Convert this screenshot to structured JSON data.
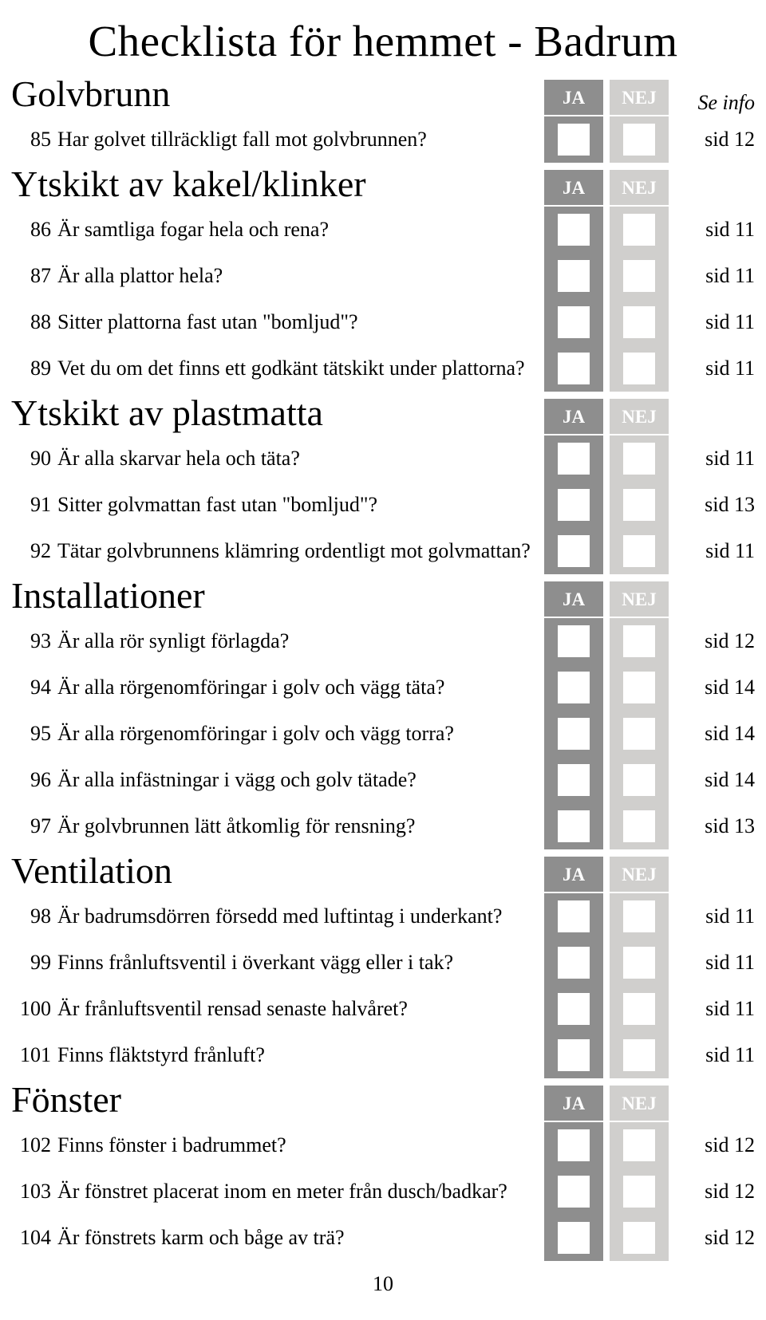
{
  "title": "Checklista för hemmet - Badrum",
  "info_header": "Se info",
  "ja_label": "JA",
  "nej_label": "NEJ",
  "page_number": "10",
  "sections": [
    {
      "heading": "Golvbrunn",
      "items": [
        {
          "num": "85",
          "q": "Har golvet tillräckligt fall mot golvbrunnen?",
          "info": "sid 12"
        }
      ]
    },
    {
      "heading": "Ytskikt av kakel/klinker",
      "items": [
        {
          "num": "86",
          "q": "Är samtliga fogar hela och rena?",
          "info": "sid 11"
        },
        {
          "num": "87",
          "q": "Är alla plattor hela?",
          "info": "sid 11"
        },
        {
          "num": "88",
          "q": "Sitter plattorna fast utan \"bomljud\"?",
          "info": "sid 11"
        },
        {
          "num": "89",
          "q": "Vet du om det finns ett godkänt tätskikt under plattorna?",
          "info": "sid 11"
        }
      ]
    },
    {
      "heading": "Ytskikt av plastmatta",
      "items": [
        {
          "num": "90",
          "q": "Är alla skarvar hela och täta?",
          "info": "sid 11"
        },
        {
          "num": "91",
          "q": "Sitter golvmattan fast utan \"bomljud\"?",
          "info": "sid 13"
        },
        {
          "num": "92",
          "q": "Tätar golvbrunnens klämring ordentligt mot golvmattan?",
          "info": "sid 11"
        }
      ]
    },
    {
      "heading": "Installationer",
      "items": [
        {
          "num": "93",
          "q": "Är alla rör synligt förlagda?",
          "info": "sid 12"
        },
        {
          "num": "94",
          "q": "Är alla rörgenomföringar i golv och vägg täta?",
          "info": "sid 14"
        },
        {
          "num": "95",
          "q": "Är alla rörgenomföringar i golv och vägg torra?",
          "info": "sid 14"
        },
        {
          "num": "96",
          "q": "Är alla infästningar i vägg och golv tätade?",
          "info": "sid 14"
        },
        {
          "num": "97",
          "q": "Är golvbrunnen lätt åtkomlig för rensning?",
          "info": "sid 13"
        }
      ]
    },
    {
      "heading": "Ventilation",
      "items": [
        {
          "num": "98",
          "q": "Är badrumsdörren försedd med luftintag i underkant?",
          "info": "sid 11"
        },
        {
          "num": "99",
          "q": "Finns frånluftsventil i överkant vägg eller i tak?",
          "info": "sid 11"
        },
        {
          "num": "100",
          "q": "Är frånluftsventil rensad senaste halvåret?",
          "info": "sid 11"
        },
        {
          "num": "101",
          "q": "Finns fläktstyrd frånluft?",
          "info": "sid 11"
        }
      ]
    },
    {
      "heading": "Fönster",
      "items": [
        {
          "num": "102",
          "q": "Finns fönster i badrummet?",
          "info": "sid 12"
        },
        {
          "num": "103",
          "q": "Är fönstret placerat inom en meter från dusch/badkar?",
          "info": "sid 12"
        },
        {
          "num": "104",
          "q": "Är fönstrets karm och båge av trä?",
          "info": "sid 12"
        }
      ]
    }
  ]
}
